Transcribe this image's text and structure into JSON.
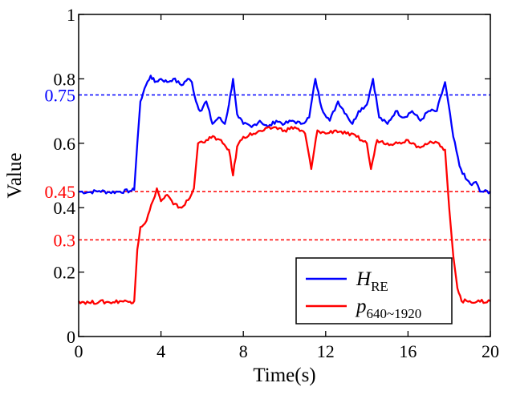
{
  "chart_data": {
    "type": "line",
    "title": "",
    "xlabel": "Time(s)",
    "ylabel": "Value",
    "xlim": [
      0,
      20
    ],
    "ylim": [
      0,
      1
    ],
    "x_ticks": [
      0,
      4,
      8,
      12,
      16,
      20
    ],
    "x_tick_labels": [
      "0",
      "4",
      "8",
      "12",
      "16",
      "20"
    ],
    "y_ticks": [
      0,
      0.2,
      0.4,
      0.6,
      0.8,
      1
    ],
    "y_tick_labels": [
      "0",
      "0.2",
      "0.4",
      "0.6",
      "0.8",
      "1"
    ],
    "grid": false,
    "legend_position": "bottom-right",
    "reference_lines": [
      {
        "value": 0.75,
        "label": "0.75",
        "color": "#0000ff",
        "style": "dashed"
      },
      {
        "value": 0.45,
        "label": "0.45",
        "color": "#ff0000",
        "style": "dashed"
      },
      {
        "value": 0.3,
        "label": "0.3",
        "color": "#ff0000",
        "style": "dashed"
      }
    ],
    "series": [
      {
        "name": "H_RE",
        "legend_main": "H",
        "legend_sub": "RE",
        "color": "#0000ff",
        "points": [
          [
            0,
            0.45
          ],
          [
            0.5,
            0.448
          ],
          [
            1.0,
            0.452
          ],
          [
            1.5,
            0.448
          ],
          [
            2.0,
            0.45
          ],
          [
            2.5,
            0.452
          ],
          [
            2.7,
            0.455
          ],
          [
            2.85,
            0.6
          ],
          [
            3.0,
            0.73
          ],
          [
            3.2,
            0.77
          ],
          [
            3.5,
            0.81
          ],
          [
            3.7,
            0.79
          ],
          [
            4.0,
            0.8
          ],
          [
            4.3,
            0.79
          ],
          [
            4.6,
            0.8
          ],
          [
            5.0,
            0.78
          ],
          [
            5.3,
            0.8
          ],
          [
            5.5,
            0.79
          ],
          [
            5.7,
            0.73
          ],
          [
            5.9,
            0.7
          ],
          [
            6.2,
            0.73
          ],
          [
            6.5,
            0.66
          ],
          [
            6.8,
            0.68
          ],
          [
            7.1,
            0.66
          ],
          [
            7.3,
            0.72
          ],
          [
            7.5,
            0.8
          ],
          [
            7.7,
            0.69
          ],
          [
            8.0,
            0.66
          ],
          [
            8.4,
            0.65
          ],
          [
            8.8,
            0.67
          ],
          [
            9.2,
            0.65
          ],
          [
            9.6,
            0.67
          ],
          [
            10.0,
            0.66
          ],
          [
            10.4,
            0.67
          ],
          [
            10.8,
            0.66
          ],
          [
            11.2,
            0.68
          ],
          [
            11.5,
            0.8
          ],
          [
            11.8,
            0.71
          ],
          [
            12.2,
            0.67
          ],
          [
            12.6,
            0.73
          ],
          [
            13.0,
            0.69
          ],
          [
            13.3,
            0.66
          ],
          [
            13.6,
            0.7
          ],
          [
            14.0,
            0.72
          ],
          [
            14.3,
            0.8
          ],
          [
            14.6,
            0.68
          ],
          [
            15.0,
            0.66
          ],
          [
            15.4,
            0.7
          ],
          [
            15.8,
            0.68
          ],
          [
            16.2,
            0.7
          ],
          [
            16.6,
            0.67
          ],
          [
            17.0,
            0.7
          ],
          [
            17.4,
            0.7
          ],
          [
            17.8,
            0.79
          ],
          [
            18.2,
            0.62
          ],
          [
            18.5,
            0.53
          ],
          [
            18.8,
            0.49
          ],
          [
            19.1,
            0.47
          ],
          [
            19.3,
            0.48
          ],
          [
            19.5,
            0.45
          ],
          [
            20.0,
            0.45
          ]
        ]
      },
      {
        "name": "p_640~1920",
        "legend_main": "p",
        "legend_sub": "640~1920",
        "color": "#ff0000",
        "points": [
          [
            0,
            0.11
          ],
          [
            0.5,
            0.105
          ],
          [
            1.0,
            0.108
          ],
          [
            1.5,
            0.106
          ],
          [
            2.0,
            0.11
          ],
          [
            2.5,
            0.108
          ],
          [
            2.7,
            0.11
          ],
          [
            2.85,
            0.27
          ],
          [
            3.0,
            0.34
          ],
          [
            3.3,
            0.36
          ],
          [
            3.6,
            0.42
          ],
          [
            3.8,
            0.46
          ],
          [
            4.0,
            0.42
          ],
          [
            4.3,
            0.44
          ],
          [
            4.6,
            0.41
          ],
          [
            5.0,
            0.4
          ],
          [
            5.4,
            0.43
          ],
          [
            5.6,
            0.46
          ],
          [
            5.8,
            0.6
          ],
          [
            6.2,
            0.61
          ],
          [
            6.6,
            0.62
          ],
          [
            7.0,
            0.6
          ],
          [
            7.3,
            0.58
          ],
          [
            7.5,
            0.5
          ],
          [
            7.7,
            0.59
          ],
          [
            8.0,
            0.62
          ],
          [
            8.5,
            0.63
          ],
          [
            9.0,
            0.64
          ],
          [
            9.5,
            0.65
          ],
          [
            10.0,
            0.64
          ],
          [
            10.5,
            0.65
          ],
          [
            11.0,
            0.63
          ],
          [
            11.3,
            0.52
          ],
          [
            11.6,
            0.64
          ],
          [
            12.0,
            0.63
          ],
          [
            12.5,
            0.64
          ],
          [
            13.0,
            0.63
          ],
          [
            13.5,
            0.62
          ],
          [
            14.0,
            0.6
          ],
          [
            14.2,
            0.52
          ],
          [
            14.5,
            0.61
          ],
          [
            15.0,
            0.6
          ],
          [
            15.5,
            0.6
          ],
          [
            16.0,
            0.61
          ],
          [
            16.5,
            0.59
          ],
          [
            17.0,
            0.6
          ],
          [
            17.5,
            0.6
          ],
          [
            17.8,
            0.58
          ],
          [
            18.0,
            0.4
          ],
          [
            18.2,
            0.25
          ],
          [
            18.4,
            0.15
          ],
          [
            18.6,
            0.11
          ],
          [
            19.0,
            0.11
          ],
          [
            19.5,
            0.108
          ],
          [
            20.0,
            0.11
          ]
        ]
      }
    ]
  }
}
